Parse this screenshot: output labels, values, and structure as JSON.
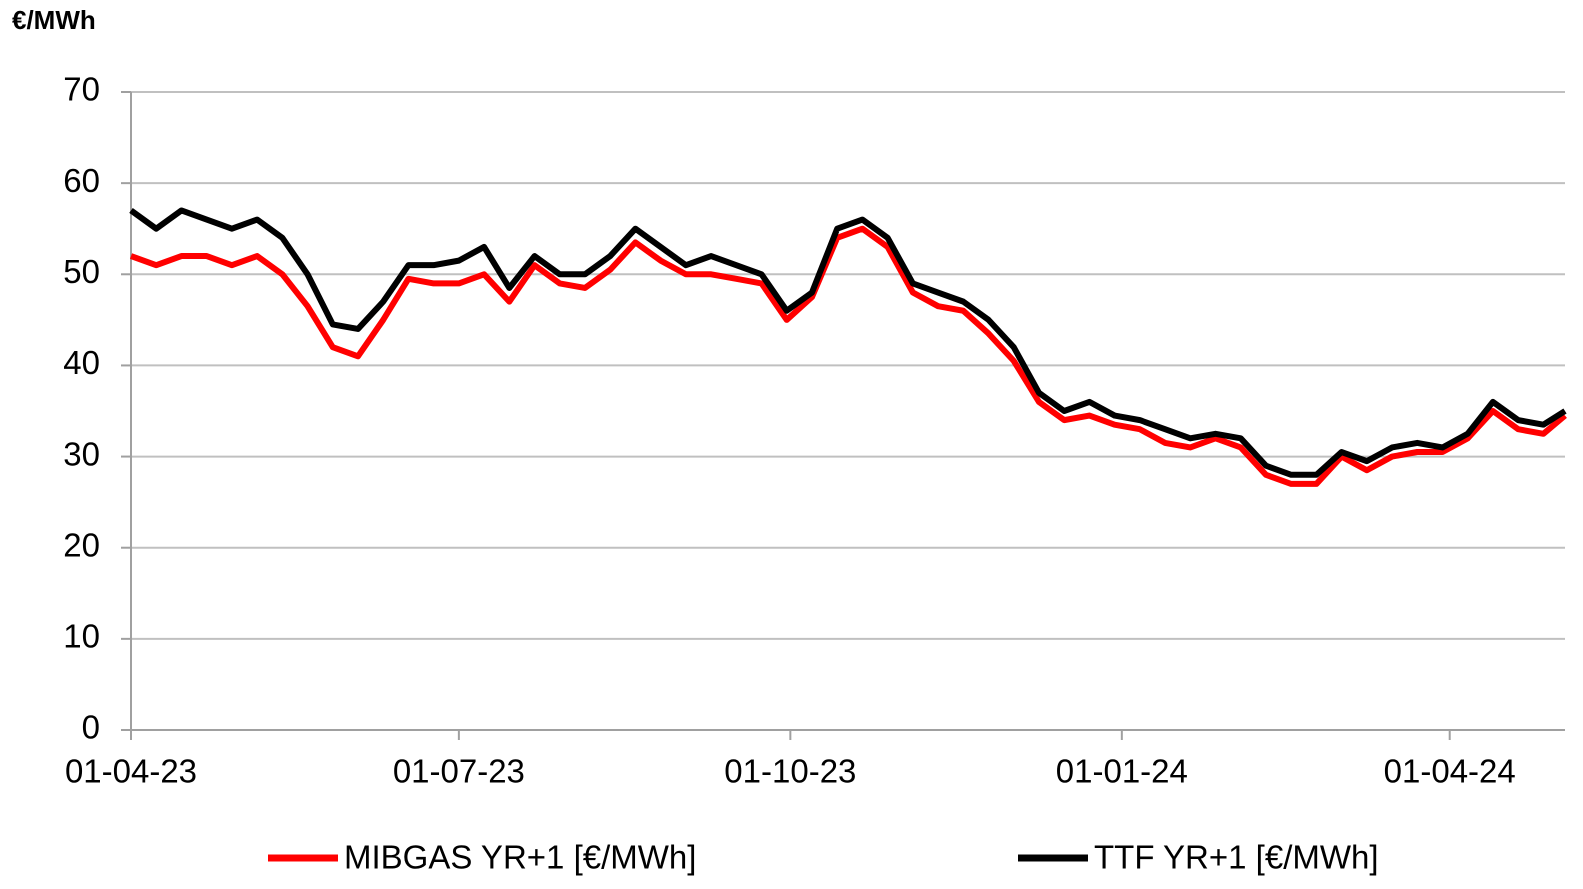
{
  "chart_data": {
    "type": "line",
    "y_axis_label": "€/MWh",
    "x": [
      "2023-04-01",
      "2023-04-08",
      "2023-04-15",
      "2023-04-22",
      "2023-04-29",
      "2023-05-06",
      "2023-05-13",
      "2023-05-20",
      "2023-05-27",
      "2023-06-03",
      "2023-06-10",
      "2023-06-17",
      "2023-06-24",
      "2023-07-01",
      "2023-07-08",
      "2023-07-15",
      "2023-07-22",
      "2023-07-29",
      "2023-08-05",
      "2023-08-12",
      "2023-08-19",
      "2023-08-26",
      "2023-09-02",
      "2023-09-09",
      "2023-09-16",
      "2023-09-23",
      "2023-09-30",
      "2023-10-07",
      "2023-10-14",
      "2023-10-21",
      "2023-10-28",
      "2023-11-04",
      "2023-11-11",
      "2023-11-18",
      "2023-11-25",
      "2023-12-02",
      "2023-12-09",
      "2023-12-16",
      "2023-12-23",
      "2023-12-30",
      "2024-01-06",
      "2024-01-13",
      "2024-01-20",
      "2024-01-27",
      "2024-02-03",
      "2024-02-10",
      "2024-02-17",
      "2024-02-24",
      "2024-03-02",
      "2024-03-09",
      "2024-03-16",
      "2024-03-23",
      "2024-03-30",
      "2024-04-06",
      "2024-04-13",
      "2024-04-20",
      "2024-04-27",
      "2024-05-03"
    ],
    "series": [
      {
        "name": "MIBGAS YR+1 [€/MWh]",
        "color": "#ff0000",
        "values": [
          52,
          51,
          52,
          52,
          51,
          52,
          50,
          46.5,
          42,
          41,
          45,
          49.5,
          49,
          49,
          50,
          47,
          51,
          49,
          48.5,
          50.5,
          53.5,
          51.5,
          50,
          50,
          49.5,
          49,
          45,
          47.5,
          54,
          55,
          53,
          48,
          46.5,
          46,
          43.5,
          40.5,
          36,
          34,
          34.5,
          33.5,
          33,
          31.5,
          31,
          32,
          31,
          28,
          27,
          27,
          30,
          28.5,
          30,
          30.5,
          30.5,
          32,
          35,
          33,
          32.5,
          34.5
        ]
      },
      {
        "name": "TTF YR+1 [€/MWh]",
        "color": "#000000",
        "values": [
          57,
          55,
          57,
          56,
          55,
          56,
          54,
          50,
          44.5,
          44,
          47,
          51,
          51,
          51.5,
          53,
          48.5,
          52,
          50,
          50,
          52,
          55,
          53,
          51,
          52,
          51,
          50,
          46,
          48,
          55,
          56,
          54,
          49,
          48,
          47,
          45,
          42,
          37,
          35,
          36,
          34.5,
          34,
          33,
          32,
          32.5,
          32,
          29,
          28,
          28,
          30.5,
          29.5,
          31,
          31.5,
          31,
          32.5,
          36,
          34,
          33.5,
          35
        ]
      }
    ],
    "xlim": [
      "2023-04-01",
      "2024-05-03"
    ],
    "xticks": [
      {
        "value": "2023-04-01",
        "label": "01-04-23"
      },
      {
        "value": "2023-07-01",
        "label": "01-07-23"
      },
      {
        "value": "2023-10-01",
        "label": "01-10-23"
      },
      {
        "value": "2024-01-01",
        "label": "01-01-24"
      },
      {
        "value": "2024-04-01",
        "label": "01-04-24"
      }
    ],
    "ylim": [
      0,
      70
    ],
    "yticks": [
      0,
      10,
      20,
      30,
      40,
      50,
      60,
      70
    ],
    "grid": true,
    "legend": "bottom"
  }
}
